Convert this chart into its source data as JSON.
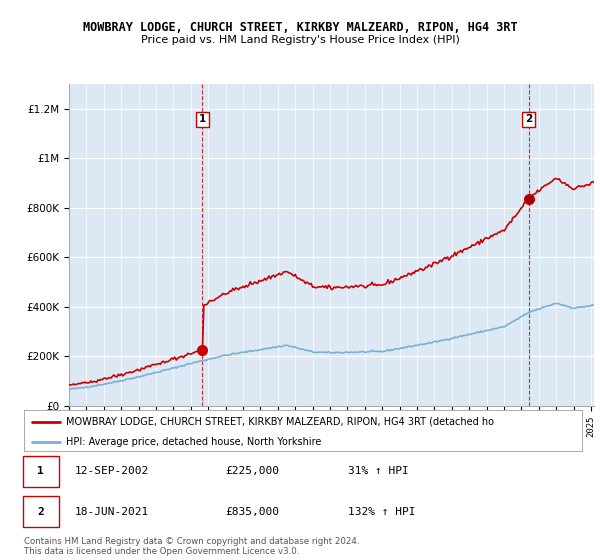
{
  "title": "MOWBRAY LODGE, CHURCH STREET, KIRKBY MALZEARD, RIPON, HG4 3RT",
  "subtitle": "Price paid vs. HM Land Registry's House Price Index (HPI)",
  "legend_line1": "MOWBRAY LODGE, CHURCH STREET, KIRKBY MALZEARD, RIPON, HG4 3RT (detached ho",
  "legend_line2": "HPI: Average price, detached house, North Yorkshire",
  "footer": "Contains HM Land Registry data © Crown copyright and database right 2024.\nThis data is licensed under the Open Government Licence v3.0.",
  "sale1_date": "12-SEP-2002",
  "sale1_price": 225000,
  "sale1_label": "£225,000",
  "sale1_hpi_pct": "31% ↑ HPI",
  "sale2_date": "18-JUN-2021",
  "sale2_price": 835000,
  "sale2_label": "£835,000",
  "sale2_hpi_pct": "132% ↑ HPI",
  "ylim": [
    0,
    1300000
  ],
  "yticks": [
    0,
    200000,
    400000,
    600000,
    800000,
    1000000,
    1200000
  ],
  "line_color_red": "#cc0000",
  "line_color_blue": "#7bafd4",
  "dashed_color": "#cc0000",
  "bg_color": "#ffffff",
  "chart_bg_color": "#dce9f5",
  "grid_color": "#ffffff",
  "sale1_x_idx": 91,
  "sale2_x_idx": 318,
  "xmin": 0,
  "xmax": 363
}
